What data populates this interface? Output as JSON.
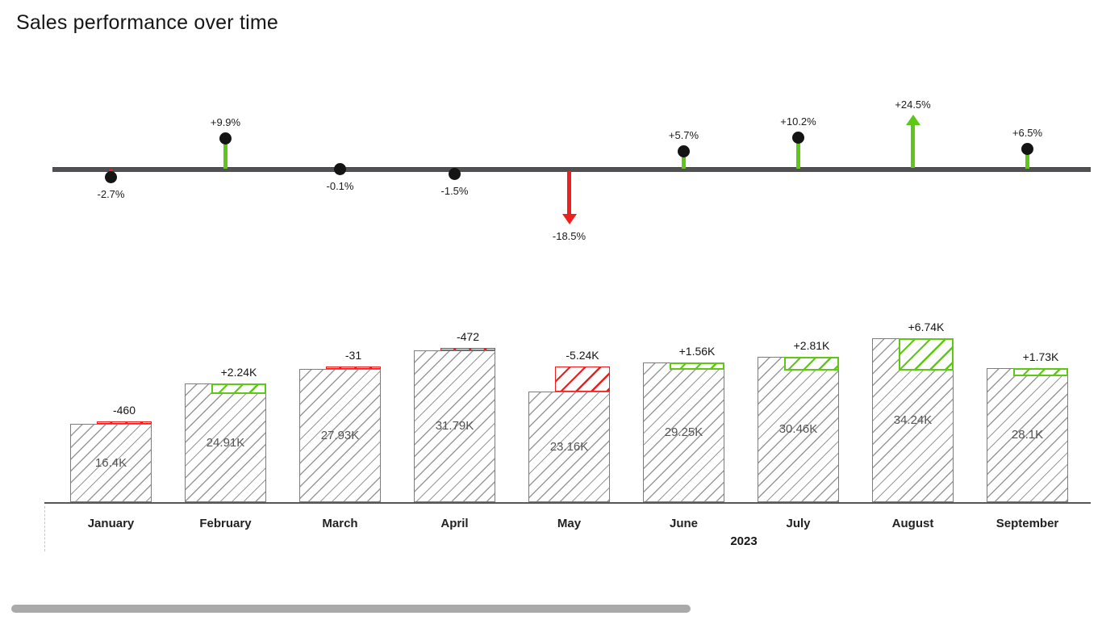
{
  "title": "Sales performance over time",
  "chart_data": {
    "type": "bar",
    "title": "Sales performance over time",
    "year_label": "2023",
    "categories": [
      "January",
      "February",
      "March",
      "April",
      "May",
      "June",
      "July",
      "August",
      "September"
    ],
    "series": [
      {
        "name": "sales",
        "values": [
          16400,
          24910,
          27930,
          31790,
          23160,
          29250,
          30460,
          34240,
          28100
        ]
      },
      {
        "name": "delta_vs_previous",
        "values": [
          -460,
          2240,
          -31,
          -472,
          -5240,
          1560,
          2810,
          6740,
          1730
        ]
      },
      {
        "name": "delta_pct_vs_previous",
        "values": [
          -2.7,
          9.9,
          -0.1,
          -1.5,
          -18.5,
          5.7,
          10.2,
          24.5,
          6.5
        ]
      }
    ],
    "value_labels": [
      "16.4K",
      "24.91K",
      "27.93K",
      "31.79K",
      "23.16K",
      "29.25K",
      "30.46K",
      "34.24K",
      "28.1K"
    ],
    "delta_labels": [
      "-460",
      "+2.24K",
      "-31",
      "-472",
      "-5.24K",
      "+1.56K",
      "+2.81K",
      "+6.74K",
      "+1.73K"
    ],
    "percent_labels": [
      "-2.7%",
      "+9.9%",
      "-0.1%",
      "-1.5%",
      "-18.5%",
      "+5.7%",
      "+10.2%",
      "+24.5%",
      "+6.5%"
    ],
    "colors": {
      "positive": "#5fc716",
      "negative": "#ee1f1f",
      "neutral_dot": "#141414",
      "bar_outline": "#7d7d7d",
      "bar_hatch": "#989898",
      "timeline_line": "#515154",
      "axis_line": "#57575a",
      "value_text": "#545454",
      "label_text": "#161616",
      "scrollbar": "#aaaaaa"
    },
    "grid": false,
    "legend_position": "none",
    "axis_note": "values shown as data labels; no numeric y-axis rendered"
  }
}
